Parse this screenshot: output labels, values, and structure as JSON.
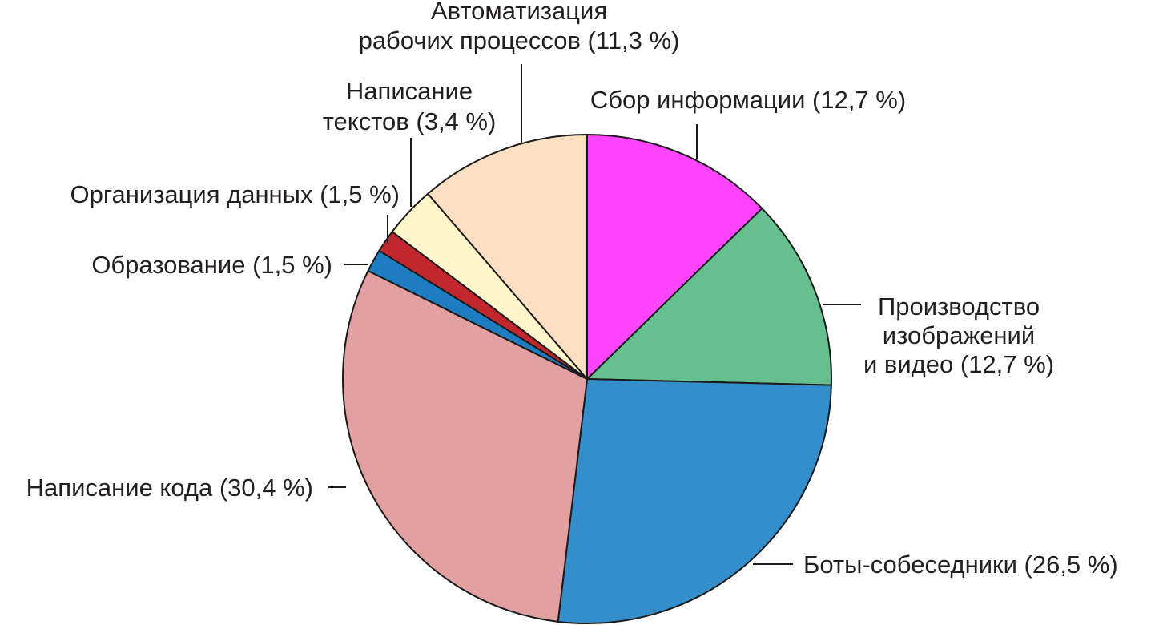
{
  "chart_data": {
    "type": "pie",
    "start_angle_deg": 90,
    "direction": "clockwise",
    "slices": [
      {
        "label_lines": [
          "Сбор информации (12,7 %)"
        ],
        "value": 12.7,
        "color": "#ff44ff"
      },
      {
        "label_lines": [
          "Производство",
          "изображений",
          "и видео (12,7 %)"
        ],
        "value": 12.7,
        "color": "#66bf8f"
      },
      {
        "label_lines": [
          "Боты-собеседники (26,5 %)"
        ],
        "value": 26.5,
        "color": "#358ecc"
      },
      {
        "label_lines": [
          "Написание кода (30,4 %)"
        ],
        "value": 30.4,
        "color": "#e2a0a0"
      },
      {
        "label_lines": [
          "Образование (1,5 %)"
        ],
        "value": 1.5,
        "color": "#1e7cc1"
      },
      {
        "label_lines": [
          "Организация данных (1,5 %)"
        ],
        "value": 1.5,
        "color": "#c1272d"
      },
      {
        "label_lines": [
          "Написание",
          "текстов (3,4 %)"
        ],
        "value": 3.4,
        "color": "#fff6cc"
      },
      {
        "label_lines": [
          "Автоматизация",
          "рабочих процессов (11,3 %)"
        ],
        "value": 11.3,
        "color": "#fcdfc0"
      }
    ]
  }
}
